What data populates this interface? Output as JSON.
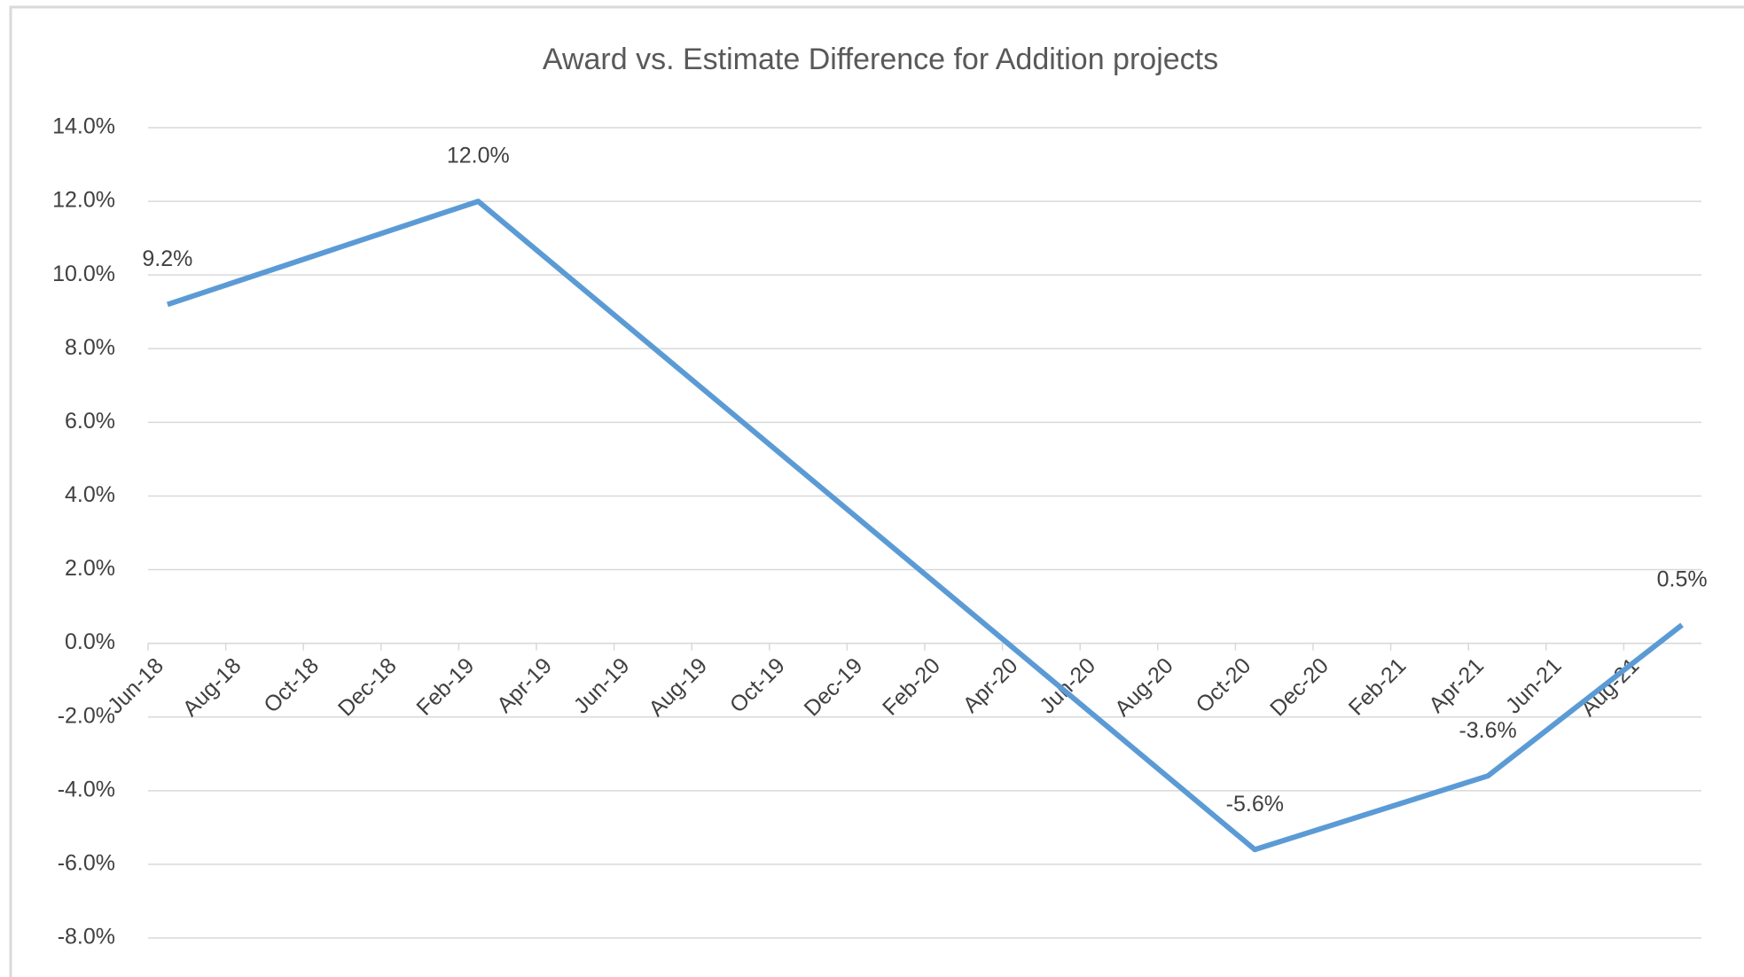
{
  "chart_data": {
    "type": "line",
    "title": "Award vs. Estimate Difference for Addition projects",
    "x": [
      "2018-06",
      "2019-02",
      "2020-10",
      "2021-04",
      "2021-09"
    ],
    "series": [
      {
        "name": "Award vs. Estimate Difference",
        "color": "#5b9bd5",
        "values": [
          9.2,
          12.0,
          -5.6,
          -3.6,
          0.5
        ],
        "value_labels": [
          "9.2%",
          "12.0%",
          "-5.6%",
          "-3.6%",
          "0.5%"
        ]
      }
    ],
    "xlim": [
      "2018-06",
      "2021-10"
    ],
    "xticks": [
      {
        "value": "2018-06",
        "label": "Jun-18"
      },
      {
        "value": "2018-08",
        "label": "Aug-18"
      },
      {
        "value": "2018-10",
        "label": "Oct-18"
      },
      {
        "value": "2018-12",
        "label": "Dec-18"
      },
      {
        "value": "2019-02",
        "label": "Feb-19"
      },
      {
        "value": "2019-04",
        "label": "Apr-19"
      },
      {
        "value": "2019-06",
        "label": "Jun-19"
      },
      {
        "value": "2019-08",
        "label": "Aug-19"
      },
      {
        "value": "2019-10",
        "label": "Oct-19"
      },
      {
        "value": "2019-12",
        "label": "Dec-19"
      },
      {
        "value": "2020-02",
        "label": "Feb-20"
      },
      {
        "value": "2020-04",
        "label": "Apr-20"
      },
      {
        "value": "2020-06",
        "label": "Jun-20"
      },
      {
        "value": "2020-08",
        "label": "Aug-20"
      },
      {
        "value": "2020-10",
        "label": "Oct-20"
      },
      {
        "value": "2020-12",
        "label": "Dec-20"
      },
      {
        "value": "2021-02",
        "label": "Feb-21"
      },
      {
        "value": "2021-04",
        "label": "Apr-21"
      },
      {
        "value": "2021-06",
        "label": "Jun-21"
      },
      {
        "value": "2021-08",
        "label": "Aug-21"
      }
    ],
    "ylim": [
      -8,
      14
    ],
    "yticks": [
      {
        "value": 14,
        "label": "14.0%"
      },
      {
        "value": 12,
        "label": "12.0%"
      },
      {
        "value": 10,
        "label": "10.0%"
      },
      {
        "value": 8,
        "label": "8.0%"
      },
      {
        "value": 6,
        "label": "6.0%"
      },
      {
        "value": 4,
        "label": "4.0%"
      },
      {
        "value": 2,
        "label": "2.0%"
      },
      {
        "value": 0,
        "label": "0.0%"
      },
      {
        "value": -2,
        "label": "-2.0%"
      },
      {
        "value": -4,
        "label": "-4.0%"
      },
      {
        "value": -6,
        "label": "-6.0%"
      },
      {
        "value": -8,
        "label": "-8.0%"
      }
    ],
    "grid": true
  }
}
